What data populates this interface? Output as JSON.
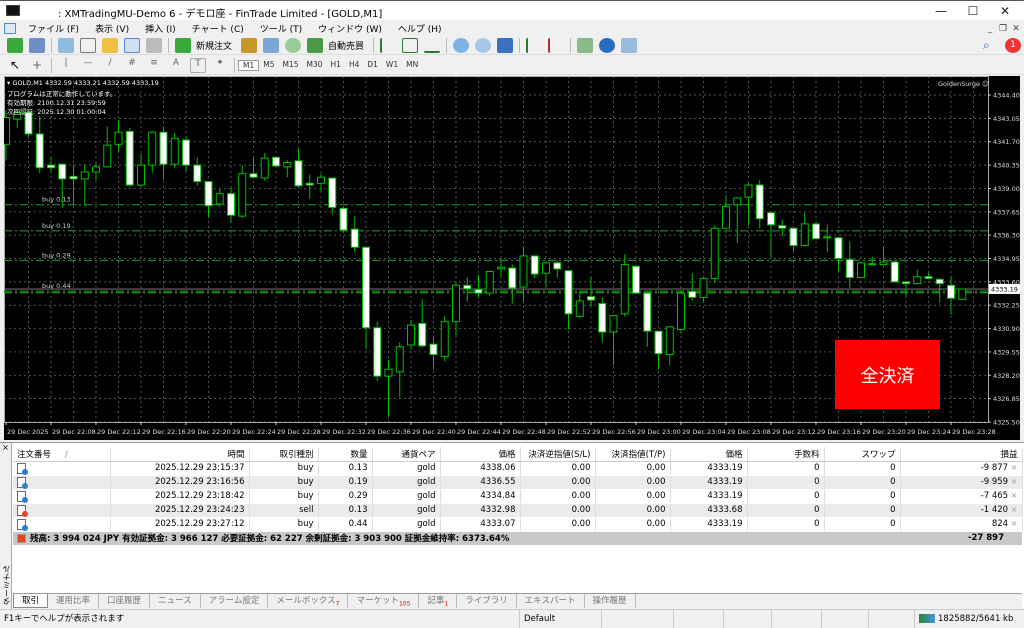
{
  "window": {
    "title": ": XMTradingMU-Demo 6 - デモロ座 - FinTrade Limited - [GOLD,M1]"
  },
  "menu": [
    "ファイル (F)",
    "表示 (V)",
    "挿入 (I)",
    "チャート (C)",
    "ツール (T)",
    "ウィンドウ (W)",
    "ヘルプ (H)"
  ],
  "toolbar": {
    "new_order": "新規注文",
    "auto_trade": "自動売買",
    "timeframes": [
      "M1",
      "M5",
      "M15",
      "M30",
      "H1",
      "H4",
      "D1",
      "W1",
      "MN"
    ],
    "notification_count": "1"
  },
  "chart": {
    "header": "GOLD,M1  4332.59 4333.21 4332.59 4333.19",
    "status_lines": [
      "プログラムは正常に動作しています。",
      "有効期限: 2100.12.31 23:59:59",
      "次回認証: 2025.12.30 01:00:04"
    ],
    "ea_name": "GoldenSurge ☺",
    "close_all_label": "全決済",
    "close_all_color": "#ff0000",
    "bull_color": "#00c000",
    "bear_color": "#ffffff"
  },
  "chart_data": {
    "type": "candlestick",
    "symbol": "GOLD",
    "timeframe": "M1",
    "ylim": [
      4325.5,
      4345.5
    ],
    "grid": true,
    "price_ticks": [
      "4344.40",
      "4343.05",
      "4341.70",
      "4340.35",
      "4339.00",
      "4337.65",
      "4336.30",
      "4334.95",
      "4333.60",
      "4332.25",
      "4330.90",
      "4329.55",
      "4328.20",
      "4326.85",
      "4325.50"
    ],
    "time_labels": [
      "29 Dec 2025",
      "29 Dec 22:08",
      "29 Dec 22:12",
      "29 Dec 22:16",
      "29 Dec 22:20",
      "29 Dec 22:24",
      "29 Dec 22:28",
      "29 Dec 22:32",
      "29 Dec 22:36",
      "29 Dec 22:40",
      "29 Dec 22:44",
      "29 Dec 22:48",
      "29 Dec 22:52",
      "29 Dec 22:56",
      "29 Dec 23:00",
      "29 Dec 23:04",
      "29 Dec 23:08",
      "29 Dec 23:12",
      "29 Dec 23:16",
      "29 Dec 23:20",
      "29 Dec 23:24",
      "29 Dec 23:28"
    ],
    "current_price": "4333.19",
    "order_lines": [
      {
        "label": "buy 0.13",
        "price": 4338.06
      },
      {
        "label": "buy 0.19",
        "price": 4336.55
      },
      {
        "label": "buy 0.29",
        "price": 4334.84
      },
      {
        "label": "buy 0.44",
        "price": 4333.07
      },
      {
        "label": "",
        "price": 4332.98
      }
    ],
    "candles": [
      [
        4341.55,
        4343.5,
        4340.6,
        4343.1
      ],
      [
        4343.0,
        4343.5,
        4342.5,
        4343.4
      ],
      [
        4343.4,
        4343.5,
        4342.0,
        4342.15
      ],
      [
        4342.15,
        4343.2,
        4339.9,
        4340.2
      ],
      [
        4340.35,
        4340.8,
        4339.95,
        4340.2
      ],
      [
        4340.4,
        4340.45,
        4337.9,
        4339.55
      ],
      [
        4339.7,
        4340.35,
        4338.05,
        4339.55
      ],
      [
        4339.55,
        4340.4,
        4338.0,
        4339.95
      ],
      [
        4339.95,
        4340.45,
        4339.45,
        4340.25
      ],
      [
        4340.25,
        4342.6,
        4340.2,
        4341.5
      ],
      [
        4341.55,
        4342.95,
        4341.1,
        4342.25
      ],
      [
        4342.3,
        4342.5,
        4339.1,
        4339.2
      ],
      [
        4339.2,
        4341.0,
        4339.1,
        4340.35
      ],
      [
        4340.35,
        4342.3,
        4339.9,
        4342.25
      ],
      [
        4342.25,
        4342.55,
        4339.5,
        4340.4
      ],
      [
        4340.4,
        4342.2,
        4340.2,
        4341.9
      ],
      [
        4341.8,
        4342.0,
        4339.95,
        4340.35
      ],
      [
        4340.35,
        4340.8,
        4339.15,
        4339.4
      ],
      [
        4339.4,
        4339.4,
        4337.35,
        4338.0
      ],
      [
        4338.1,
        4339.0,
        4337.95,
        4338.7
      ],
      [
        4338.7,
        4339.05,
        4337.0,
        4337.45
      ],
      [
        4337.4,
        4340.35,
        4337.3,
        4339.85
      ],
      [
        4339.85,
        4340.75,
        4339.6,
        4339.65
      ],
      [
        4339.6,
        4341.05,
        4339.45,
        4340.75
      ],
      [
        4340.8,
        4340.8,
        4340.3,
        4340.3
      ],
      [
        4340.25,
        4340.65,
        4339.65,
        4340.5
      ],
      [
        4340.6,
        4341.3,
        4339.1,
        4339.15
      ],
      [
        4339.3,
        4339.8,
        4338.4,
        4339.2
      ],
      [
        4339.3,
        4339.85,
        4338.8,
        4339.65
      ],
      [
        4339.6,
        4339.6,
        4337.5,
        4337.9
      ],
      [
        4337.85,
        4337.9,
        4336.45,
        4336.6
      ],
      [
        4336.65,
        4337.4,
        4335.3,
        4335.6
      ],
      [
        4335.6,
        4335.6,
        4329.7,
        4330.95
      ],
      [
        4330.95,
        4331.3,
        4327.85,
        4328.15
      ],
      [
        4328.15,
        4329.1,
        4325.8,
        4328.55
      ],
      [
        4328.4,
        4330.1,
        4326.9,
        4329.85
      ],
      [
        4329.95,
        4331.4,
        4329.7,
        4331.1
      ],
      [
        4331.2,
        4332.6,
        4329.8,
        4329.9
      ],
      [
        4330.0,
        4330.4,
        4328.55,
        4329.4
      ],
      [
        4329.3,
        4331.65,
        4329.0,
        4331.3
      ],
      [
        4331.3,
        4333.55,
        4330.5,
        4333.4
      ],
      [
        4333.4,
        4333.85,
        4332.45,
        4333.2
      ],
      [
        4333.15,
        4334.0,
        4332.7,
        4332.95
      ],
      [
        4332.95,
        4334.2,
        4332.8,
        4334.2
      ],
      [
        4334.35,
        4334.95,
        4333.85,
        4334.45
      ],
      [
        4334.4,
        4334.6,
        4332.35,
        4333.25
      ],
      [
        4333.3,
        4335.6,
        4332.45,
        4335.1
      ],
      [
        4335.1,
        4335.1,
        4333.8,
        4334.05
      ],
      [
        4334.1,
        4334.7,
        4333.25,
        4334.7
      ],
      [
        4334.7,
        4334.85,
        4333.85,
        4334.35
      ],
      [
        4334.25,
        4334.25,
        4330.85,
        4331.75
      ],
      [
        4331.6,
        4333.1,
        4331.5,
        4332.5
      ],
      [
        4332.75,
        4333.85,
        4332.2,
        4332.55
      ],
      [
        4332.35,
        4332.7,
        4330.1,
        4330.7
      ],
      [
        4330.7,
        4331.65,
        4328.8,
        4331.65
      ],
      [
        4331.75,
        4335.2,
        4331.6,
        4334.6
      ],
      [
        4334.5,
        4334.6,
        4332.9,
        4332.95
      ],
      [
        4332.95,
        4332.95,
        4329.85,
        4330.75
      ],
      [
        4330.75,
        4330.75,
        4328.55,
        4329.45
      ],
      [
        4329.4,
        4331.0,
        4328.8,
        4331.0
      ],
      [
        4330.85,
        4333.1,
        4330.6,
        4332.95
      ],
      [
        4333.05,
        4334.1,
        4332.5,
        4332.7
      ],
      [
        4332.7,
        4333.8,
        4332.45,
        4333.8
      ],
      [
        4333.8,
        4336.85,
        4333.55,
        4336.7
      ],
      [
        4336.7,
        4338.6,
        4336.7,
        4337.95
      ],
      [
        4338.05,
        4338.5,
        4335.85,
        4338.45
      ],
      [
        4338.5,
        4339.3,
        4336.85,
        4339.2
      ],
      [
        4339.2,
        4339.5,
        4336.7,
        4337.25
      ],
      [
        4337.6,
        4337.6,
        4335.05,
        4336.9
      ],
      [
        4336.85,
        4337.2,
        4336.25,
        4336.7
      ],
      [
        4336.7,
        4336.7,
        4335.35,
        4335.7
      ],
      [
        4335.7,
        4337.6,
        4335.65,
        4336.95
      ],
      [
        4336.95,
        4337.05,
        4336.05,
        4336.1
      ],
      [
        4336.2,
        4336.9,
        4335.3,
        4336.15
      ],
      [
        4336.15,
        4336.15,
        4334.2,
        4334.95
      ],
      [
        4334.9,
        4335.95,
        4333.25,
        4333.85
      ],
      [
        4333.85,
        4334.7,
        4333.8,
        4334.7
      ],
      [
        4334.65,
        4335.05,
        4334.6,
        4334.65
      ],
      [
        4334.6,
        4335.65,
        4334.6,
        4334.75
      ],
      [
        4334.75,
        4334.85,
        4333.6,
        4333.6
      ],
      [
        4333.6,
        4333.6,
        4332.7,
        4333.5
      ],
      [
        4333.5,
        4334.3,
        4333.5,
        4333.9
      ],
      [
        4333.9,
        4334.1,
        4333.75,
        4333.8
      ],
      [
        4333.75,
        4333.75,
        4332.4,
        4333.5
      ],
      [
        4333.4,
        4333.95,
        4331.7,
        4332.65
      ],
      [
        4332.59,
        4333.21,
        4332.59,
        4333.19
      ]
    ]
  },
  "terminal": {
    "side_label": "ターミナル",
    "columns": [
      "注文番号",
      "時間",
      "取引種別",
      "数量",
      "通貨ペア",
      "価格",
      "決済逆指値(S/L)",
      "決済指値(T/P)",
      "価格",
      "手数料",
      "スワップ",
      "損益"
    ],
    "sort_mark": "/",
    "orders": [
      {
        "time": "2025.12.29 23:15:37",
        "type": "buy",
        "volume": "0.13",
        "symbol": "gold",
        "price": "4338.06",
        "sl": "0.00",
        "tp": "0.00",
        "current": "4333.19",
        "commission": "0",
        "swap": "0",
        "profit": "-9 877"
      },
      {
        "time": "2025.12.29 23:16:56",
        "type": "buy",
        "volume": "0.19",
        "symbol": "gold",
        "price": "4336.55",
        "sl": "0.00",
        "tp": "0.00",
        "current": "4333.19",
        "commission": "0",
        "swap": "0",
        "profit": "-9 959"
      },
      {
        "time": "2025.12.29 23:18:42",
        "type": "buy",
        "volume": "0.29",
        "symbol": "gold",
        "price": "4334.84",
        "sl": "0.00",
        "tp": "0.00",
        "current": "4333.19",
        "commission": "0",
        "swap": "0",
        "profit": "-7 465"
      },
      {
        "time": "2025.12.29 23:24:23",
        "type": "sell",
        "volume": "0.13",
        "symbol": "gold",
        "price": "4332.98",
        "sl": "0.00",
        "tp": "0.00",
        "current": "4333.68",
        "commission": "0",
        "swap": "0",
        "profit": "-1 420"
      },
      {
        "time": "2025.12.29 23:27:12",
        "type": "buy",
        "volume": "0.44",
        "symbol": "gold",
        "price": "4333.07",
        "sl": "0.00",
        "tp": "0.00",
        "current": "4333.19",
        "commission": "0",
        "swap": "0",
        "profit": "824"
      }
    ],
    "close_mark": "×",
    "summary": "残高: 3 994 024 JPY  有効証拠金: 3 966 127  必要証拠金: 62 227  余剰証拠金: 3 903 900  証拠金維持率: 6373.64%",
    "total_profit": "-27 897",
    "tabs": [
      {
        "label": "取引"
      },
      {
        "label": "運用比率"
      },
      {
        "label": "口座履歴"
      },
      {
        "label": "ニュース"
      },
      {
        "label": "アラーム設定"
      },
      {
        "label": "メールボックス",
        "badge": "7"
      },
      {
        "label": "マーケット",
        "badge": "105"
      },
      {
        "label": "記事",
        "badge": "1"
      },
      {
        "label": "ライブラリ"
      },
      {
        "label": "エキスパート"
      },
      {
        "label": "操作履歴"
      }
    ]
  },
  "statusbar": {
    "help": "F1キーでヘルプが表示されます",
    "profile": "Default",
    "traffic": "1825882/5641 kb"
  }
}
